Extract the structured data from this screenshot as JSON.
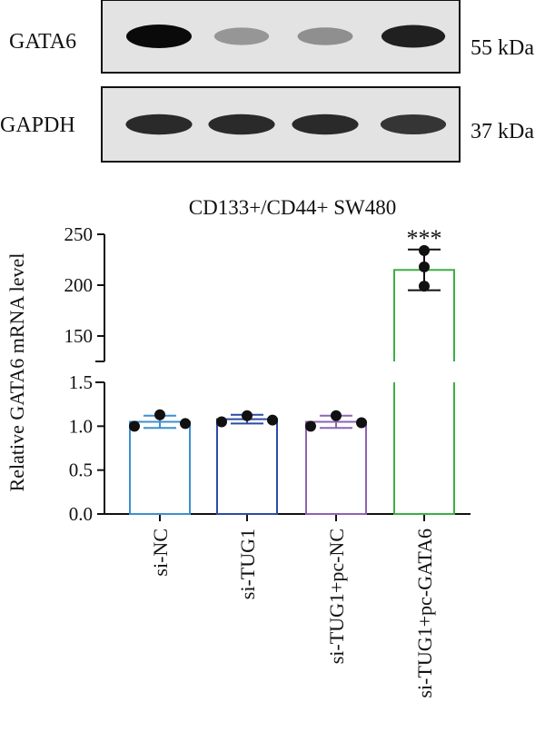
{
  "blot": {
    "rows": [
      {
        "protein": "GATA6",
        "mw": "55 kDa",
        "intensities": [
          1.0,
          0.35,
          0.38,
          0.9
        ]
      },
      {
        "protein": "GAPDH",
        "mw": "37 kDa",
        "intensities": [
          0.85,
          0.85,
          0.85,
          0.8
        ]
      }
    ]
  },
  "chart_data": {
    "type": "bar",
    "title": "CD133+/CD44+ SW480",
    "ylabel": "Relative GATA6 mRNA level",
    "xlabel": "",
    "categories": [
      "si-NC",
      "si-TUG1",
      "si-TUG1+pc-NC",
      "si-TUG1+pc-GATA6"
    ],
    "values": [
      1.05,
      1.08,
      1.05,
      215
    ],
    "errors": [
      0.07,
      0.05,
      0.07,
      20
    ],
    "points": [
      [
        1.0,
        1.13,
        1.03
      ],
      [
        1.05,
        1.12,
        1.07
      ],
      [
        1.0,
        1.12,
        1.04
      ],
      [
        199,
        218,
        234
      ]
    ],
    "colors": [
      "#3d8fd1",
      "#2e4aa3",
      "#8e63b3",
      "#3cb043"
    ],
    "significance": [
      "",
      "",
      "",
      "***"
    ],
    "axis_break": true,
    "ylim_lower": [
      0,
      1.5
    ],
    "yticks_lower": [
      "0.0",
      "0.5",
      "1.0",
      "1.5"
    ],
    "ylim_upper": [
      125,
      250
    ],
    "yticks_upper": [
      "150",
      "200",
      "250"
    ]
  }
}
